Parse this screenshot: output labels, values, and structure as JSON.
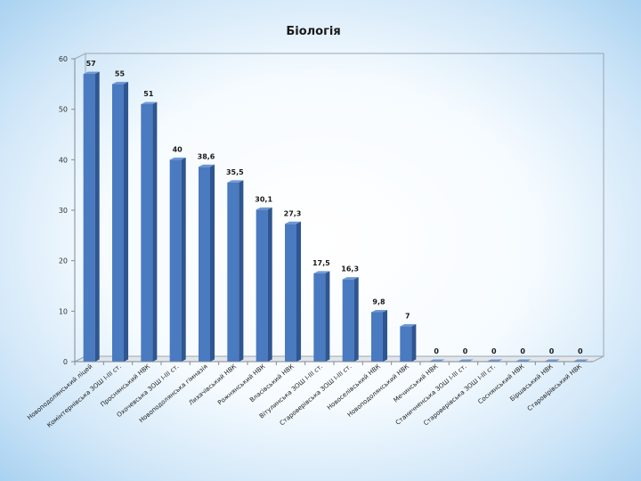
{
  "chart_data": {
    "type": "bar",
    "title": "Біологія",
    "xlabel": "",
    "ylabel": "",
    "ylim": [
      0,
      60
    ],
    "yticks": [
      0,
      10,
      20,
      30,
      40,
      50,
      60
    ],
    "grid": false,
    "legend": "none",
    "bar_color": "#4a7ac0",
    "categories": [
      "Новоподолянський ліцей",
      "Комінтернівська ЗОШ І-ІІІ ст.",
      "Проснянський НВК",
      "Охочевська ЗОШ І-ІІІ ст.",
      "Новоподолянська гімназія",
      "Лихачівський НВК",
      "Рожнянський НВК",
      "Власівський НВК",
      "Вітулинська ЗОШ І-ІІІ ст.",
      "Староверівська ЗОШ І-ІІІ ст.",
      "Новоселівський НВК",
      "Новоподолянський НВК",
      "Мечинський НВК",
      "Станичненська ЗОШ І-ІІІ ст.",
      "Староверівська ЗОШ І-ІІІ ст.",
      "Соснянський НВК",
      "Біршвський НВК",
      "Старовірівський НВК"
    ],
    "values": [
      57,
      55,
      51,
      40,
      38.6,
      35.5,
      30.1,
      27.3,
      17.5,
      16.3,
      9.8,
      7,
      0,
      0,
      0,
      0,
      0,
      0
    ],
    "data_labels": [
      "57",
      "55",
      "51",
      "40",
      "38,6",
      "35,5",
      "30,1",
      "27,3",
      "17,5",
      "16,3",
      "9,8",
      "7",
      "0",
      "0",
      "0",
      "0",
      "0",
      "0"
    ]
  }
}
